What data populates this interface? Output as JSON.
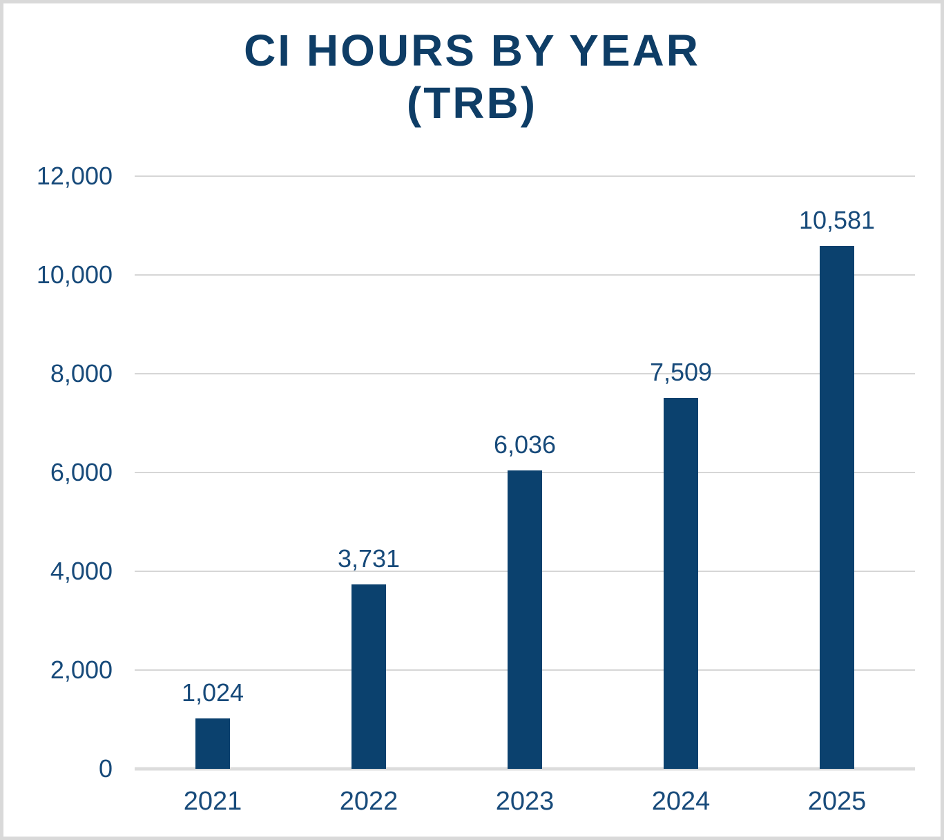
{
  "title": {
    "line1": "CI HOURS BY YEAR",
    "line2": "(TRB)"
  },
  "chart_data": {
    "type": "bar",
    "title": "CI HOURS BY YEAR (TRB)",
    "categories": [
      "2021",
      "2022",
      "2023",
      "2024",
      "2025"
    ],
    "values": [
      1024,
      3731,
      6036,
      7509,
      10581
    ],
    "value_labels": [
      "1,024",
      "3,731",
      "6,036",
      "7,509",
      "10,581"
    ],
    "xlabel": "",
    "ylabel": "",
    "ylim": [
      0,
      12000
    ],
    "ytick_step": 2000,
    "ytick_labels": [
      "0",
      "2,000",
      "4,000",
      "6,000",
      "8,000",
      "10,000",
      "12,000"
    ],
    "grid": "horizontal-only",
    "legend": "none"
  },
  "colors": {
    "bar": "#0b416e",
    "label_text": "#174a7a",
    "title_text": "#0e3d66",
    "gridline": "#d6d6d6",
    "baseline": "#dcdcdc",
    "frame_border": "#d9d9d9",
    "background": "#ffffff"
  }
}
